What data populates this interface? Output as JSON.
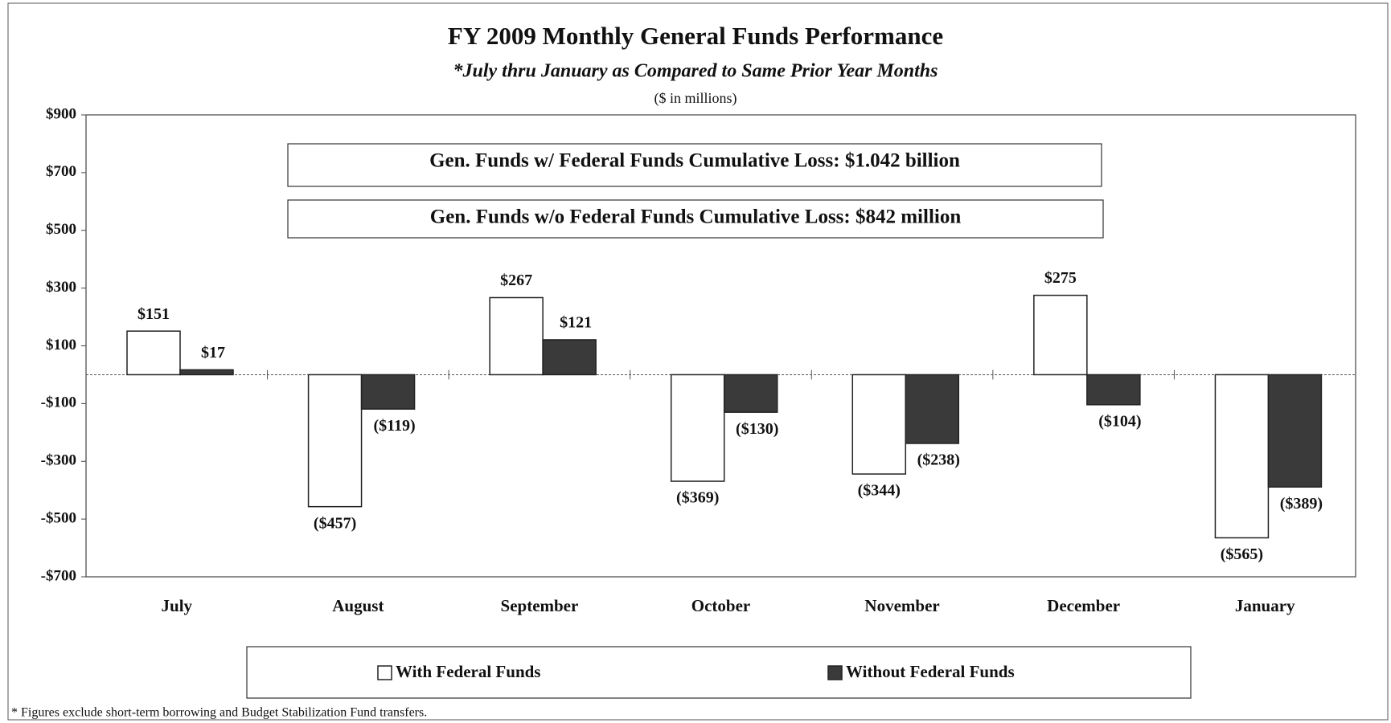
{
  "chart_data": {
    "type": "bar",
    "title": "FY 2009 Monthly General Funds Performance",
    "subtitle": "*July thru January as Compared to Same Prior Year Months",
    "units": "($ in millions)",
    "annotations": [
      "Gen. Funds w/ Federal Funds Cumulative Loss: $1.042 billion",
      "Gen. Funds w/o Federal Funds Cumulative Loss: $842 million"
    ],
    "footnote": "* Figures exclude short-term borrowing and Budget Stabilization Fund transfers.",
    "categories": [
      "July",
      "August",
      "September",
      "October",
      "November",
      "December",
      "January"
    ],
    "series": [
      {
        "name": "With Federal Funds",
        "color": "#ffffff",
        "values": [
          151,
          -457,
          267,
          -369,
          -344,
          275,
          -565
        ],
        "value_labels": [
          "$151",
          "($457)",
          "$267",
          "($369)",
          "($344)",
          "$275",
          "($565)"
        ]
      },
      {
        "name": "Without Federal Funds",
        "color": "#3a3a3a",
        "values": [
          17,
          -119,
          121,
          -130,
          -238,
          -104,
          -389
        ],
        "value_labels": [
          "$17",
          "($119)",
          "$121",
          "($130)",
          "($238)",
          "($104)",
          "($389)"
        ]
      }
    ],
    "ylim": [
      -700,
      900
    ],
    "yticks": [
      {
        "value": 900,
        "label": "$900"
      },
      {
        "value": 700,
        "label": "$700"
      },
      {
        "value": 500,
        "label": "$500"
      },
      {
        "value": 300,
        "label": "$300"
      },
      {
        "value": 100,
        "label": "$100"
      },
      {
        "value": -100,
        "label": "-$100"
      },
      {
        "value": -300,
        "label": "-$300"
      },
      {
        "value": -500,
        "label": "-$500"
      },
      {
        "value": -700,
        "label": "-$700"
      }
    ],
    "legend": "bottom"
  }
}
